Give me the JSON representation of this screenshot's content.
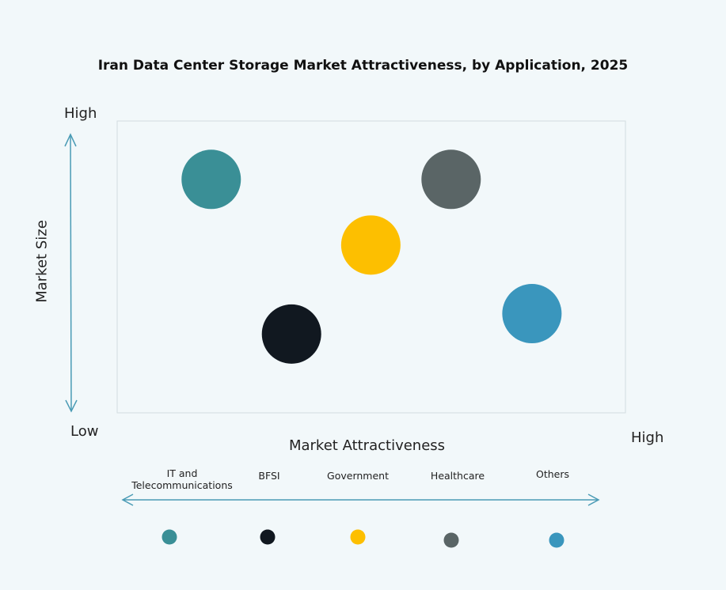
{
  "chart_data": {
    "type": "scatter",
    "title": "Iran Data Center Storage Market Attractiveness,  by Application, 2025",
    "xlabel": "Market Attractiveness",
    "ylabel": "Market Size",
    "x_low_label": "Low",
    "x_high_label": "High",
    "y_high_label": "High",
    "xlim": [
      0,
      10
    ],
    "ylim": [
      0,
      10
    ],
    "grid": false,
    "legend_position": "bottom",
    "series": [
      {
        "name": "IT and Telecommunications",
        "x": 1.85,
        "y": 8.0,
        "color": "#3a8f96"
      },
      {
        "name": "BFSI",
        "x": 3.43,
        "y": 2.7,
        "color": "#111820"
      },
      {
        "name": "Government",
        "x": 4.99,
        "y": 5.75,
        "color": "#fdbf00"
      },
      {
        "name": "Healthcare",
        "x": 6.57,
        "y": 8.0,
        "color": "#5a6566"
      },
      {
        "name": "Others",
        "x": 8.16,
        "y": 3.4,
        "color": "#3a96bd"
      }
    ]
  },
  "legend_labels": [
    "IT and\nTelecommunications",
    "BFSI",
    "Government",
    "Healthcare",
    "Others"
  ],
  "axis_color": "#4a9bb5"
}
